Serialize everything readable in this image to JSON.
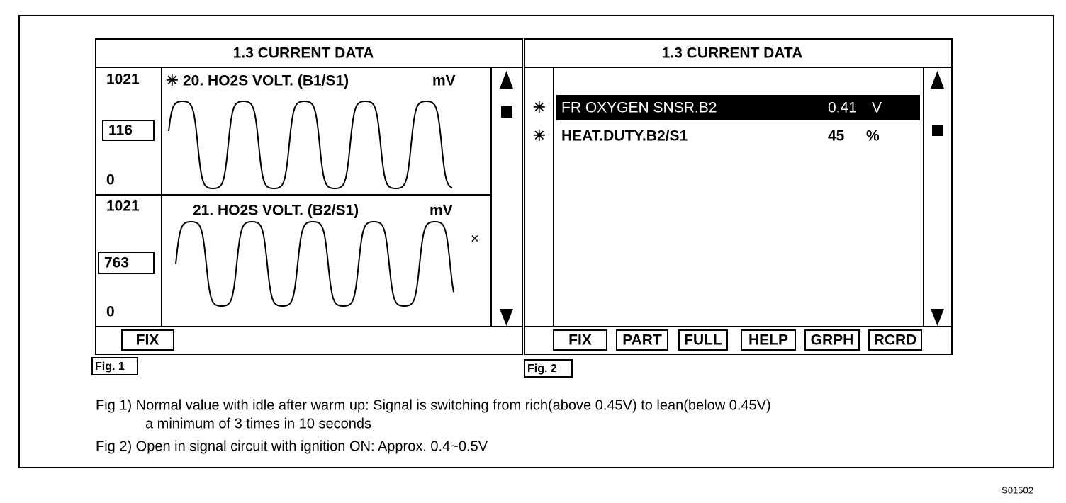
{
  "fig1": {
    "title": "1.3  CURRENT  DATA",
    "panels": [
      {
        "max": "1021",
        "current": "116",
        "min": "0",
        "marker": "✳",
        "label": "20. HO2S  VOLT. (B1/S1)",
        "unit": "mV"
      },
      {
        "max": "1021",
        "current": "763",
        "min": "0",
        "label": "21. HO2S  VOLT. (B2/S1)",
        "unit": "mV",
        "cursor": "×"
      }
    ],
    "buttons": [
      "FIX"
    ],
    "caption": "Fig. 1"
  },
  "fig2": {
    "title": "1.3  CURRENT DATA",
    "rows": [
      {
        "marker": "✳",
        "name": "FR  OXYGEN  SNSR.B2",
        "value": "0.41",
        "unit": "V"
      },
      {
        "marker": "✳",
        "name": "HEAT.DUTY.B2/S1",
        "value": "45",
        "unit": "%"
      }
    ],
    "buttons": [
      "FIX",
      "PART",
      "FULL",
      "HELP",
      "GRPH",
      "RCRD"
    ],
    "caption": "Fig. 2"
  },
  "notes": [
    "Fig 1) Normal value with idle after warm up: Signal is switching from rich(above 0.45V) to lean(below 0.45V)",
    "a minimum of 3 times in 10 seconds",
    "Fig 2) Open in signal circuit with ignition ON: Approx. 0.4~0.5V"
  ],
  "figure_id": "S01502"
}
